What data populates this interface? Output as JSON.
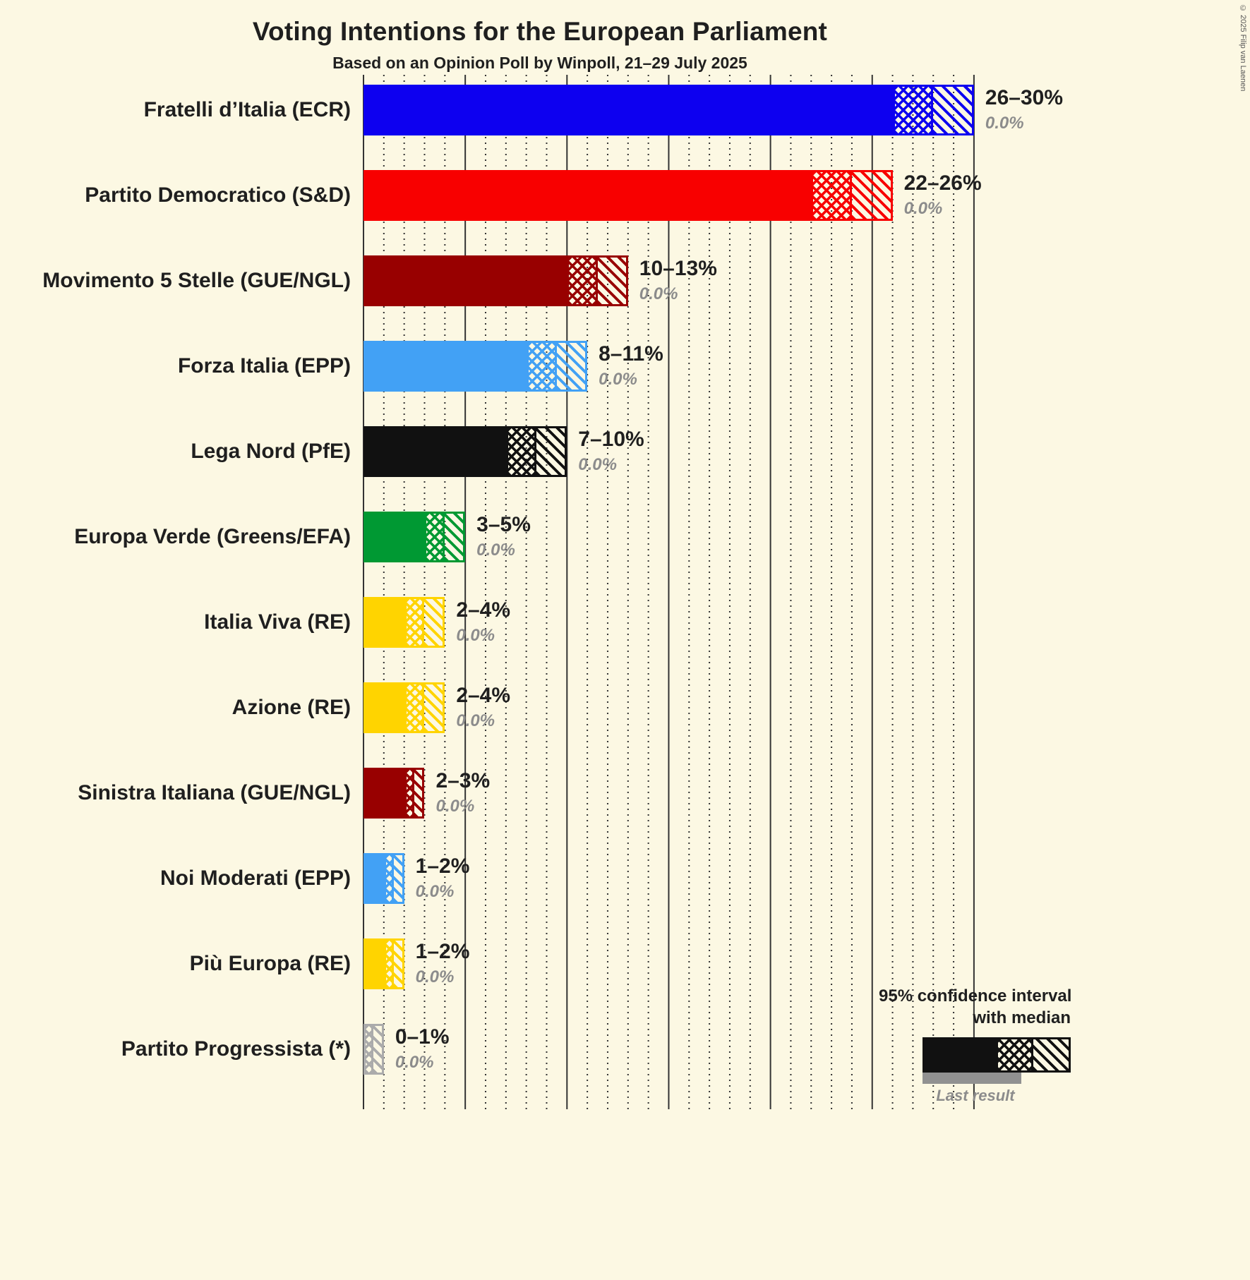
{
  "copyright": "© 2025 Filip van Laenen",
  "legend": {
    "line1": "95% confidence interval",
    "line2": "with median",
    "last_result": "Last result"
  },
  "chart_data": {
    "type": "bar",
    "orientation": "horizontal",
    "title": "Voting Intentions for the European Parliament",
    "subtitle": "Based on an Opinion Poll by Winpoll, 21–29 July 2025",
    "x_axis": {
      "min": 0,
      "max": 30,
      "unit": "%",
      "major_tick_interval": 5,
      "minor_tick_interval": 1,
      "tick_labels_visible": false,
      "gridlines": true
    },
    "legend_position": "bottom-right",
    "parties": [
      {
        "label": "Fratelli d’Italia (ECR)",
        "color": "#0D00F0",
        "ci_low": 26,
        "median": 28,
        "ci_high": 30,
        "range_label": "26–30%",
        "last_result": 0.0,
        "last_result_label": "0.0%"
      },
      {
        "label": "Partito Democratico (S&D)",
        "color": "#F80000",
        "ci_low": 22,
        "median": 24,
        "ci_high": 26,
        "range_label": "22–26%",
        "last_result": 0.0,
        "last_result_label": "0.0%"
      },
      {
        "label": "Movimento 5 Stelle (GUE/NGL)",
        "color": "#980000",
        "ci_low": 10,
        "median": 11.5,
        "ci_high": 13,
        "range_label": "10–13%",
        "last_result": 0.0,
        "last_result_label": "0.0%"
      },
      {
        "label": "Forza Italia (EPP)",
        "color": "#42A1F5",
        "ci_low": 8,
        "median": 9.5,
        "ci_high": 11,
        "range_label": "8–11%",
        "last_result": 0.0,
        "last_result_label": "0.0%"
      },
      {
        "label": "Lega Nord (PfE)",
        "color": "#111111",
        "ci_low": 7,
        "median": 8.5,
        "ci_high": 10,
        "range_label": "7–10%",
        "last_result": 0.0,
        "last_result_label": "0.0%"
      },
      {
        "label": "Europa Verde (Greens/EFA)",
        "color": "#009933",
        "ci_low": 3,
        "median": 4,
        "ci_high": 5,
        "range_label": "3–5%",
        "last_result": 0.0,
        "last_result_label": "0.0%"
      },
      {
        "label": "Italia Viva (RE)",
        "color": "#FFD400",
        "ci_low": 2,
        "median": 3,
        "ci_high": 4,
        "range_label": "2–4%",
        "last_result": 0.0,
        "last_result_label": "0.0%"
      },
      {
        "label": "Azione (RE)",
        "color": "#FFD400",
        "ci_low": 2,
        "median": 3,
        "ci_high": 4,
        "range_label": "2–4%",
        "last_result": 0.0,
        "last_result_label": "0.0%"
      },
      {
        "label": "Sinistra Italiana (GUE/NGL)",
        "color": "#980000",
        "ci_low": 2,
        "median": 2.5,
        "ci_high": 3,
        "range_label": "2–3%",
        "last_result": 0.0,
        "last_result_label": "0.0%"
      },
      {
        "label": "Noi Moderati (EPP)",
        "color": "#42A1F5",
        "ci_low": 1,
        "median": 1.5,
        "ci_high": 2,
        "range_label": "1–2%",
        "last_result": 0.0,
        "last_result_label": "0.0%"
      },
      {
        "label": "Più Europa (RE)",
        "color": "#FFD400",
        "ci_low": 1,
        "median": 1.5,
        "ci_high": 2,
        "range_label": "1–2%",
        "last_result": 0.0,
        "last_result_label": "0.0%"
      },
      {
        "label": "Partito Progressista (*)",
        "color": "#ABABAB",
        "ci_low": 0,
        "median": 0.5,
        "ci_high": 1,
        "range_label": "0–1%",
        "last_result": 0.0,
        "last_result_label": "0.0%"
      }
    ]
  }
}
